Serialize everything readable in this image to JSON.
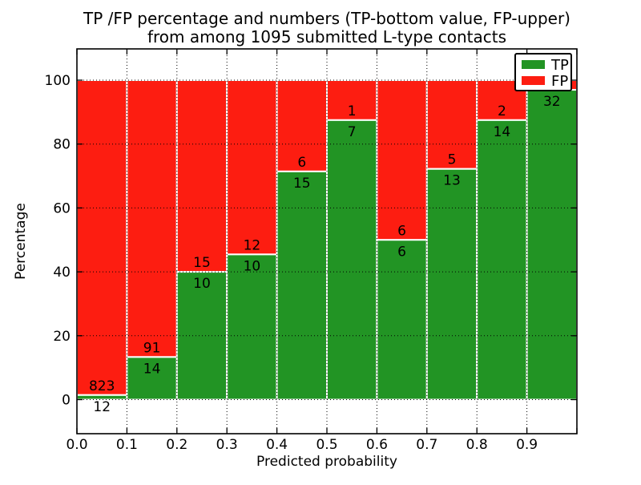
{
  "figure": {
    "title_line1": "TP /FP percentage and numbers (TP-bottom value, FP-upper)",
    "title_line2": "from among 1095 submitted L-type contacts",
    "background_color": "#ffffff"
  },
  "axes": {
    "xlabel": "Predicted probability",
    "ylabel": "Percentage",
    "x_tick_labels": [
      "0.0",
      "0.1",
      "0.2",
      "0.3",
      "0.4",
      "0.5",
      "0.6",
      "0.7",
      "0.8",
      "0.9"
    ],
    "y_tick_labels": [
      "0",
      "20",
      "40",
      "60",
      "80",
      "100"
    ],
    "y_tick_values": [
      0,
      20,
      40,
      60,
      80,
      100
    ]
  },
  "legend": {
    "position": "upper-right",
    "items": [
      {
        "label": "TP",
        "color": "#229424"
      },
      {
        "label": "FP",
        "color": "#fd1d11"
      }
    ]
  },
  "chart_data": {
    "type": "bar",
    "variant": "stacked-normalized-percent",
    "title": "TP /FP percentage and numbers (TP-bottom value, FP-upper) from among 1095 submitted L-type contacts",
    "xlabel": "Predicted probability",
    "ylabel": "Percentage",
    "xlim": [
      0.0,
      1.0
    ],
    "ylim": [
      -10,
      110
    ],
    "grid": "dotted",
    "legend_position": "upper-right",
    "total_contacts": 1095,
    "bin_starts": [
      0.0,
      0.1,
      0.2,
      0.3,
      0.4,
      0.5,
      0.6,
      0.7,
      0.8,
      0.9
    ],
    "bin_width": 0.1,
    "series": [
      {
        "name": "TP",
        "color": "#229424",
        "counts": [
          12,
          14,
          10,
          10,
          15,
          7,
          6,
          13,
          14,
          32
        ]
      },
      {
        "name": "FP",
        "color": "#fd1d11",
        "counts": [
          823,
          91,
          15,
          12,
          6,
          1,
          6,
          5,
          2,
          1
        ]
      }
    ],
    "tp_percent_of_bin": [
      1.4,
      13.3,
      40.0,
      45.5,
      71.4,
      87.5,
      50.0,
      72.2,
      87.5,
      97.0
    ],
    "bar_labels": {
      "tp": [
        "12",
        "14",
        "10",
        "10",
        "15",
        "7",
        "6",
        "13",
        "14",
        "32"
      ],
      "fp": [
        "823",
        "91",
        "15",
        "12",
        "6",
        "1",
        "6",
        "5",
        "2",
        ""
      ]
    }
  }
}
